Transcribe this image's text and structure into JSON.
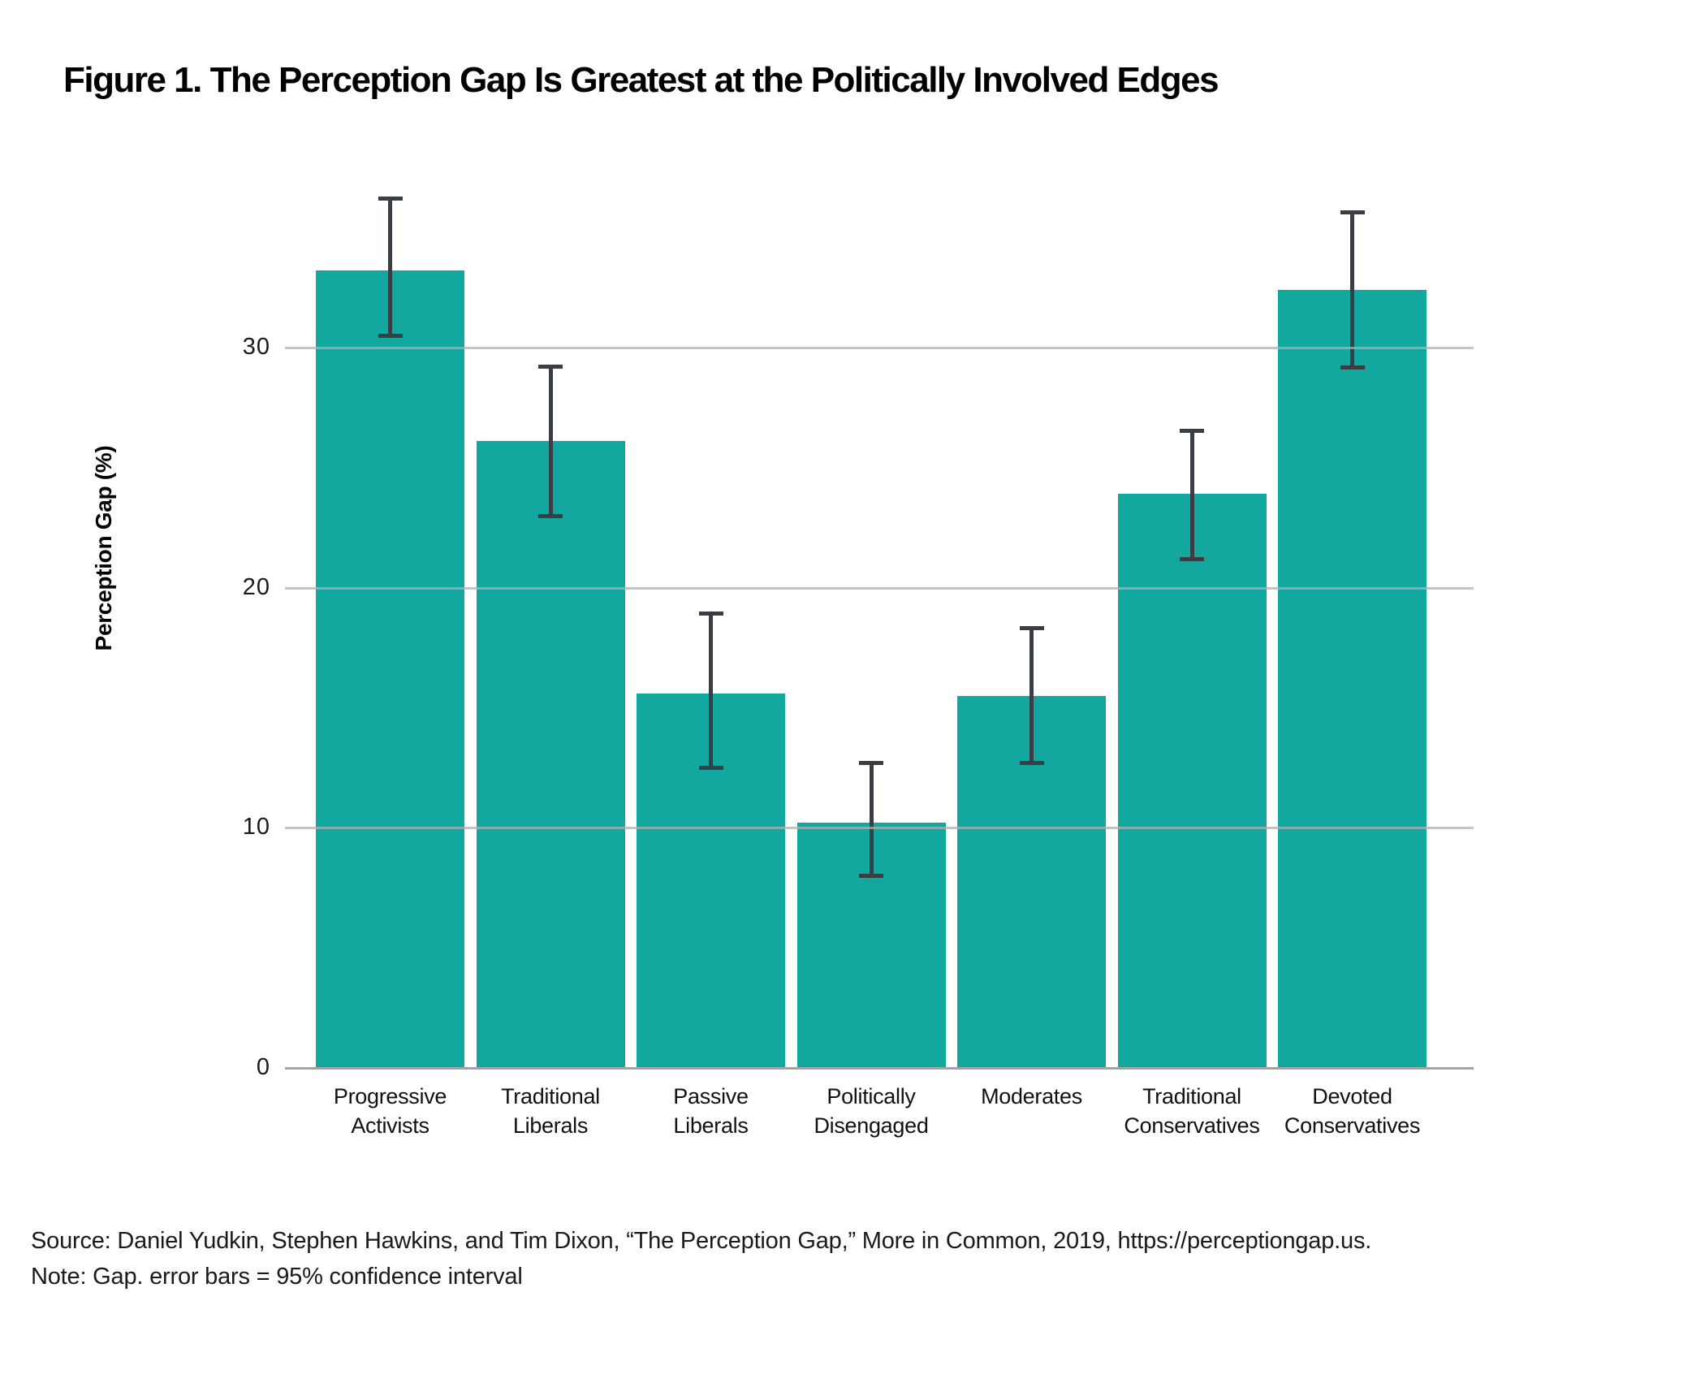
{
  "figure": {
    "title": "Figure 1. The Perception Gap Is Greatest at the Politically Involved Edges",
    "source_line": "Source: Daniel Yudkin, Stephen Hawkins, and Tim Dixon, “The Perception Gap,” More in Common, 2019, https://perceptiongap.us.",
    "note_line": "Note: Gap. error bars = 95% confidence interval"
  },
  "chart_data": {
    "type": "bar",
    "title": "Figure 1. The Perception Gap Is Greatest at the Politically Involved Edges",
    "xlabel": "",
    "ylabel": "Perception Gap (%)",
    "ylim": [
      0,
      38.7
    ],
    "yticks": [
      0,
      10,
      20,
      30
    ],
    "grid": "horizontal gridlines at y ticks, drawn over bars",
    "legend_position": "none",
    "categories": [
      "Progressive Activists",
      "Traditional Liberals",
      "Passive Liberals",
      "Politically Disengaged",
      "Moderates",
      "Traditional Conservatives",
      "Devoted Conservatives"
    ],
    "values": [
      33.2,
      26.1,
      15.6,
      10.2,
      15.5,
      23.9,
      32.4
    ],
    "error_low": [
      30.4,
      22.9,
      12.4,
      7.9,
      12.6,
      21.1,
      29.1
    ],
    "error_high": [
      36.3,
      29.3,
      19.0,
      12.8,
      18.4,
      26.6,
      35.7
    ],
    "error_bar_meaning": "95% confidence interval",
    "colors": {
      "bar": "#12A8A0",
      "error_bar": "#383E44",
      "gridline": "#B0B0B0",
      "baseline": "#A3A3A3",
      "text": "#111111"
    }
  }
}
